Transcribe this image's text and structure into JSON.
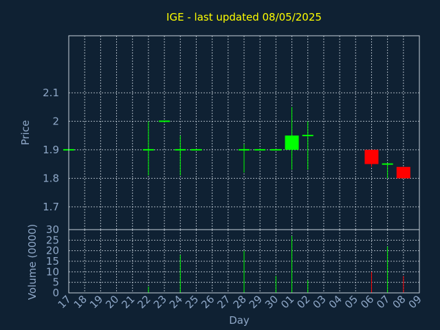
{
  "chart_data": {
    "type": "candlestick",
    "title": "IGE - last updated 08/05/2025",
    "xlabel": "Day",
    "x": [
      "17",
      "18",
      "19",
      "20",
      "21",
      "22",
      "23",
      "24",
      "25",
      "26",
      "27",
      "28",
      "29",
      "30",
      "01",
      "02",
      "03",
      "04",
      "05",
      "06",
      "07",
      "08",
      "09"
    ],
    "price_panel": {
      "ylabel": "Price",
      "ylim": [
        1.62,
        2.3
      ],
      "yticks": [
        "1.7",
        "1.8",
        "1.9",
        "2",
        "2.1"
      ],
      "candles": [
        {
          "day": "17",
          "open": 1.9,
          "high": 1.9,
          "low": 1.9,
          "close": 1.9
        },
        {
          "day": "22",
          "open": 1.9,
          "high": 2.0,
          "low": 1.81,
          "close": 1.9
        },
        {
          "day": "23",
          "open": 2.0,
          "high": 2.0,
          "low": 2.0,
          "close": 2.0
        },
        {
          "day": "24",
          "open": 1.9,
          "high": 1.95,
          "low": 1.81,
          "close": 1.9
        },
        {
          "day": "25",
          "open": 1.9,
          "high": 1.9,
          "low": 1.9,
          "close": 1.9
        },
        {
          "day": "28",
          "open": 1.9,
          "high": 1.92,
          "low": 1.82,
          "close": 1.9
        },
        {
          "day": "29",
          "open": 1.9,
          "high": 1.9,
          "low": 1.9,
          "close": 1.9
        },
        {
          "day": "30",
          "open": 1.9,
          "high": 1.9,
          "low": 1.9,
          "close": 1.9
        },
        {
          "day": "01",
          "open": 1.9,
          "high": 2.05,
          "low": 1.83,
          "close": 1.95
        },
        {
          "day": "02",
          "open": 1.95,
          "high": 2.0,
          "low": 1.83,
          "close": 1.95
        },
        {
          "day": "06",
          "open": 1.9,
          "high": 1.9,
          "low": 1.84,
          "close": 1.85
        },
        {
          "day": "07",
          "open": 1.85,
          "high": 1.85,
          "low": 1.8,
          "close": 1.85
        },
        {
          "day": "08",
          "open": 1.84,
          "high": 1.84,
          "low": 1.8,
          "close": 1.8
        }
      ]
    },
    "volume_panel": {
      "ylabel": "Volume (0000)",
      "ylim": [
        0,
        30
      ],
      "yticks": [
        "0",
        "5",
        "10",
        "15",
        "20",
        "25",
        "30"
      ],
      "bars": [
        {
          "day": "22",
          "value": 3,
          "direction": "up"
        },
        {
          "day": "24",
          "value": 18,
          "direction": "up"
        },
        {
          "day": "28",
          "value": 20,
          "direction": "up"
        },
        {
          "day": "30",
          "value": 8,
          "direction": "up"
        },
        {
          "day": "01",
          "value": 27,
          "direction": "up"
        },
        {
          "day": "02",
          "value": 6,
          "direction": "up"
        },
        {
          "day": "06",
          "value": 10,
          "direction": "down"
        },
        {
          "day": "07",
          "value": 22,
          "direction": "up"
        },
        {
          "day": "08",
          "value": 8,
          "direction": "down"
        }
      ]
    },
    "grid": true,
    "colors": {
      "background": "#0f2133",
      "up": "#00ff00",
      "down": "#ff0000",
      "text": "#8fa8c8",
      "title": "#ffff00",
      "grid": "#c8d2dc"
    }
  }
}
